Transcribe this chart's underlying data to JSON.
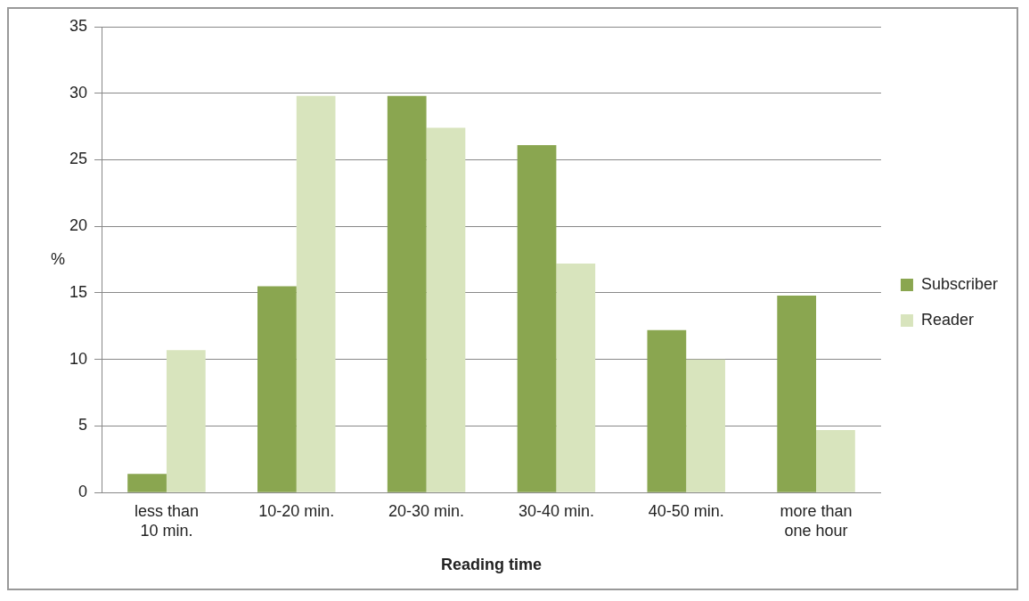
{
  "chart_data": {
    "type": "bar",
    "xlabel": "Reading time",
    "ylabel": "%",
    "categories": [
      "less than 10 min.",
      "10-20 min.",
      "20-30 min.",
      "30-40 min.",
      "40-50 min.",
      "more than one hour"
    ],
    "series": [
      {
        "name": "Subscriber",
        "color": "#8aa650",
        "values": [
          1.4,
          15.5,
          29.8,
          26.1,
          12.2,
          14.8
        ]
      },
      {
        "name": "Reader",
        "color": "#d8e4bd",
        "values": [
          10.7,
          29.8,
          27.4,
          17.2,
          10.0,
          4.7
        ]
      }
    ],
    "ylim": [
      0,
      35
    ],
    "yticks": [
      0,
      5,
      10,
      15,
      20,
      25,
      30,
      35
    ],
    "grid": "y",
    "legend": "right"
  }
}
